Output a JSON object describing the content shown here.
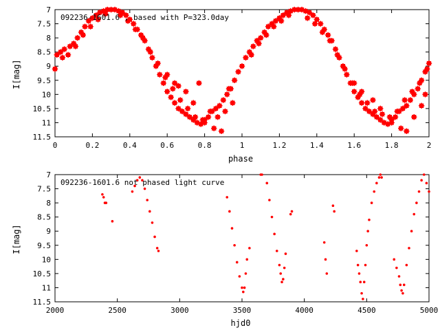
{
  "colors": {
    "points": "#ff0000",
    "axes": "#000000",
    "background": "#ffffff"
  },
  "chart_data": [
    {
      "type": "scatter",
      "title": "092236-1601.6 , based with P=323.0day",
      "xlabel": "phase",
      "ylabel": "I[mag]",
      "xlim": [
        0,
        2
      ],
      "ylim": [
        11.5,
        7
      ],
      "y_inverted": true,
      "x_ticks": [
        "0",
        "0.2",
        "0.4",
        "0.6",
        "0.8",
        "1",
        "1.2",
        "1.4",
        "1.6",
        "1.8",
        "2"
      ],
      "y_ticks": [
        "7",
        "7.5",
        "8",
        "8.5",
        "9",
        "9.5",
        "10",
        "10.5",
        "11",
        "11.5"
      ],
      "grid": false,
      "marker": "filled-star",
      "series": [
        {
          "points": [
            [
              0.0,
              9.1
            ],
            [
              0.01,
              8.6
            ],
            [
              0.03,
              8.5
            ],
            [
              0.05,
              8.4
            ],
            [
              0.08,
              8.3
            ],
            [
              0.1,
              8.2
            ],
            [
              0.12,
              8.0
            ],
            [
              0.14,
              7.8
            ],
            [
              0.16,
              7.6
            ],
            [
              0.18,
              7.4
            ],
            [
              0.2,
              7.3
            ],
            [
              0.22,
              7.2
            ],
            [
              0.24,
              7.1
            ],
            [
              0.26,
              7.05
            ],
            [
              0.28,
              7.0
            ],
            [
              0.3,
              7.0
            ],
            [
              0.32,
              7.0
            ],
            [
              0.34,
              7.05
            ],
            [
              0.36,
              7.1
            ],
            [
              0.38,
              7.2
            ],
            [
              0.4,
              7.35
            ],
            [
              0.42,
              7.5
            ],
            [
              0.44,
              7.7
            ],
            [
              0.46,
              7.9
            ],
            [
              0.48,
              8.1
            ],
            [
              0.5,
              8.4
            ],
            [
              0.52,
              8.7
            ],
            [
              0.54,
              9.0
            ],
            [
              0.56,
              9.3
            ],
            [
              0.58,
              9.6
            ],
            [
              0.6,
              9.9
            ],
            [
              0.62,
              10.1
            ],
            [
              0.64,
              10.3
            ],
            [
              0.66,
              10.5
            ],
            [
              0.68,
              10.6
            ],
            [
              0.7,
              10.7
            ],
            [
              0.72,
              10.8
            ],
            [
              0.74,
              10.9
            ],
            [
              0.76,
              11.0
            ],
            [
              0.78,
              11.05
            ],
            [
              0.8,
              11.0
            ],
            [
              0.82,
              10.8
            ],
            [
              0.84,
              10.6
            ],
            [
              0.86,
              10.5
            ],
            [
              0.88,
              10.4
            ],
            [
              0.9,
              10.2
            ],
            [
              0.92,
              10.0
            ],
            [
              0.94,
              9.8
            ],
            [
              0.96,
              9.5
            ],
            [
              0.98,
              9.2
            ],
            [
              0.04,
              8.7
            ],
            [
              0.07,
              8.6
            ],
            [
              0.11,
              8.3
            ],
            [
              0.15,
              7.9
            ],
            [
              0.19,
              7.6
            ],
            [
              0.23,
              7.35
            ],
            [
              0.27,
              7.15
            ],
            [
              0.35,
              7.2
            ],
            [
              0.39,
              7.4
            ],
            [
              0.43,
              7.7
            ],
            [
              0.47,
              8.0
            ],
            [
              0.51,
              8.5
            ],
            [
              0.55,
              8.9
            ],
            [
              0.59,
              9.4
            ],
            [
              0.63,
              9.8
            ],
            [
              0.67,
              10.2
            ],
            [
              0.71,
              10.5
            ],
            [
              0.75,
              10.8
            ],
            [
              0.79,
              10.9
            ],
            [
              0.83,
              10.6
            ],
            [
              0.87,
              10.8
            ],
            [
              0.91,
              10.6
            ],
            [
              0.95,
              10.3
            ],
            [
              0.66,
              9.7
            ],
            [
              0.7,
              9.9
            ],
            [
              0.74,
              10.3
            ],
            [
              0.8,
              10.9
            ],
            [
              0.85,
              11.2
            ],
            [
              0.89,
              11.3
            ],
            [
              0.6,
              9.3
            ],
            [
              0.64,
              9.6
            ],
            [
              0.77,
              9.6
            ],
            [
              0.93,
              9.8
            ],
            [
              1.0,
              9.0
            ],
            [
              1.02,
              8.7
            ],
            [
              1.04,
              8.5
            ],
            [
              1.06,
              8.3
            ],
            [
              1.08,
              8.1
            ],
            [
              1.1,
              8.0
            ],
            [
              1.12,
              7.8
            ],
            [
              1.14,
              7.6
            ],
            [
              1.16,
              7.5
            ],
            [
              1.18,
              7.4
            ],
            [
              1.2,
              7.3
            ],
            [
              1.22,
              7.2
            ],
            [
              1.24,
              7.1
            ],
            [
              1.26,
              7.05
            ],
            [
              1.28,
              7.0
            ],
            [
              1.3,
              7.0
            ],
            [
              1.32,
              7.0
            ],
            [
              1.34,
              7.05
            ],
            [
              1.36,
              7.1
            ],
            [
              1.38,
              7.2
            ],
            [
              1.4,
              7.35
            ],
            [
              1.42,
              7.5
            ],
            [
              1.44,
              7.7
            ],
            [
              1.46,
              7.9
            ],
            [
              1.48,
              8.1
            ],
            [
              1.5,
              8.4
            ],
            [
              1.52,
              8.7
            ],
            [
              1.54,
              9.0
            ],
            [
              1.56,
              9.3
            ],
            [
              1.58,
              9.6
            ],
            [
              1.6,
              9.9
            ],
            [
              1.62,
              10.1
            ],
            [
              1.64,
              10.3
            ],
            [
              1.66,
              10.5
            ],
            [
              1.68,
              10.6
            ],
            [
              1.7,
              10.7
            ],
            [
              1.72,
              10.8
            ],
            [
              1.74,
              10.9
            ],
            [
              1.76,
              11.0
            ],
            [
              1.78,
              11.05
            ],
            [
              1.8,
              11.0
            ],
            [
              1.82,
              10.8
            ],
            [
              1.84,
              10.6
            ],
            [
              1.86,
              10.5
            ],
            [
              1.88,
              10.4
            ],
            [
              1.9,
              10.2
            ],
            [
              1.92,
              10.0
            ],
            [
              1.94,
              9.8
            ],
            [
              1.96,
              9.5
            ],
            [
              1.98,
              9.2
            ],
            [
              2.0,
              8.9
            ],
            [
              1.05,
              8.6
            ],
            [
              1.09,
              8.2
            ],
            [
              1.13,
              7.9
            ],
            [
              1.17,
              7.6
            ],
            [
              1.21,
              7.4
            ],
            [
              1.25,
              7.2
            ],
            [
              1.35,
              7.3
            ],
            [
              1.39,
              7.5
            ],
            [
              1.43,
              7.8
            ],
            [
              1.47,
              8.1
            ],
            [
              1.51,
              8.6
            ],
            [
              1.55,
              9.1
            ],
            [
              1.59,
              9.6
            ],
            [
              1.63,
              10.0
            ],
            [
              1.67,
              10.3
            ],
            [
              1.71,
              10.6
            ],
            [
              1.75,
              10.7
            ],
            [
              1.79,
              10.8
            ],
            [
              1.83,
              10.6
            ],
            [
              1.87,
              10.2
            ],
            [
              1.91,
              9.9
            ],
            [
              1.95,
              9.6
            ],
            [
              1.99,
              9.1
            ],
            [
              1.6,
              9.6
            ],
            [
              1.64,
              9.9
            ],
            [
              1.7,
              10.2
            ],
            [
              1.74,
              10.5
            ],
            [
              1.8,
              10.9
            ],
            [
              1.85,
              11.2
            ],
            [
              1.88,
              11.3
            ],
            [
              1.92,
              10.8
            ],
            [
              1.96,
              10.4
            ],
            [
              1.98,
              10.0
            ]
          ]
        }
      ]
    },
    {
      "type": "scatter",
      "title": "092236-1601.6 not phased light curve",
      "xlabel": "hjd0",
      "ylabel": "I[mag]",
      "xlim": [
        2000,
        5000
      ],
      "ylim": [
        11.5,
        7
      ],
      "y_inverted": true,
      "x_ticks": [
        "2000",
        "2500",
        "3000",
        "3500",
        "4000",
        "4500",
        "5000"
      ],
      "y_ticks": [
        "7",
        "7.5",
        "8",
        "8.5",
        "9",
        "9.5",
        "10",
        "10.5",
        "11",
        "11.5"
      ],
      "grid": false,
      "marker": "dot",
      "series": [
        {
          "points": [
            [
              2380,
              7.7
            ],
            [
              2390,
              7.8
            ],
            [
              2400,
              8.0
            ],
            [
              2410,
              8.0
            ],
            [
              2460,
              8.65
            ],
            [
              2620,
              7.6
            ],
            [
              2640,
              7.4
            ],
            [
              2660,
              7.2
            ],
            [
              2680,
              7.1
            ],
            [
              2700,
              7.2
            ],
            [
              2720,
              7.5
            ],
            [
              2740,
              7.9
            ],
            [
              2760,
              8.3
            ],
            [
              2780,
              8.7
            ],
            [
              2800,
              9.2
            ],
            [
              2820,
              9.6
            ],
            [
              2830,
              9.7
            ],
            [
              3380,
              7.8
            ],
            [
              3400,
              8.3
            ],
            [
              3420,
              8.9
            ],
            [
              3440,
              9.5
            ],
            [
              3460,
              10.1
            ],
            [
              3480,
              10.6
            ],
            [
              3500,
              11.0
            ],
            [
              3510,
              11.15
            ],
            [
              3520,
              11.0
            ],
            [
              3530,
              10.5
            ],
            [
              3540,
              10.0
            ],
            [
              3560,
              9.6
            ],
            [
              3650,
              7.0
            ],
            [
              3660,
              7.0
            ],
            [
              3700,
              7.3
            ],
            [
              3720,
              7.9
            ],
            [
              3740,
              8.5
            ],
            [
              3760,
              9.1
            ],
            [
              3780,
              9.7
            ],
            [
              3800,
              10.2
            ],
            [
              3810,
              10.5
            ],
            [
              3820,
              10.8
            ],
            [
              3830,
              10.7
            ],
            [
              3840,
              10.3
            ],
            [
              3850,
              9.8
            ],
            [
              3890,
              8.4
            ],
            [
              3900,
              8.3
            ],
            [
              4160,
              9.4
            ],
            [
              4170,
              10.0
            ],
            [
              4180,
              10.5
            ],
            [
              4230,
              8.1
            ],
            [
              4240,
              8.3
            ],
            [
              4420,
              9.7
            ],
            [
              4430,
              10.2
            ],
            [
              4440,
              10.5
            ],
            [
              4450,
              10.8
            ],
            [
              4460,
              11.2
            ],
            [
              4470,
              11.4
            ],
            [
              4480,
              10.8
            ],
            [
              4490,
              10.2
            ],
            [
              4500,
              9.5
            ],
            [
              4510,
              9.0
            ],
            [
              4520,
              8.6
            ],
            [
              4540,
              8.0
            ],
            [
              4560,
              7.6
            ],
            [
              4580,
              7.3
            ],
            [
              4600,
              7.1
            ],
            [
              4610,
              7.0
            ],
            [
              4620,
              7.1
            ],
            [
              4720,
              10.0
            ],
            [
              4740,
              10.3
            ],
            [
              4760,
              10.6
            ],
            [
              4770,
              10.9
            ],
            [
              4780,
              11.1
            ],
            [
              4790,
              11.2
            ],
            [
              4800,
              10.9
            ],
            [
              4820,
              10.2
            ],
            [
              4840,
              9.6
            ],
            [
              4860,
              9.0
            ],
            [
              4880,
              8.4
            ],
            [
              4900,
              8.0
            ],
            [
              4920,
              7.6
            ],
            [
              4940,
              7.2
            ],
            [
              4960,
              7.0
            ],
            [
              4980,
              7.3
            ],
            [
              5000,
              7.6
            ]
          ]
        }
      ]
    }
  ]
}
